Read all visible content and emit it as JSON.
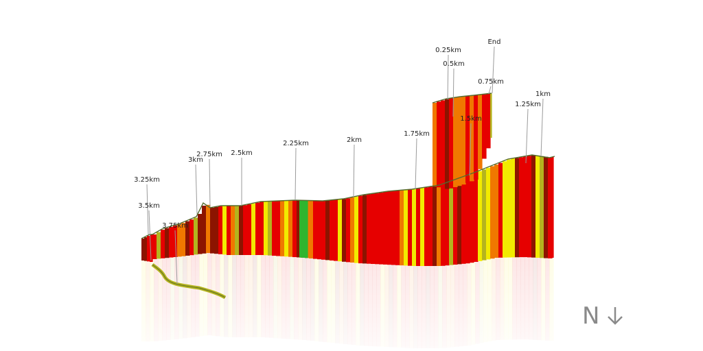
{
  "chart_data": {
    "type": "area",
    "labels": [
      "End",
      "0.25km",
      "0.5km",
      "0.75km",
      "1km",
      "1.25km",
      "1.5km",
      "1.75km",
      "2km",
      "2.25km",
      "2.5km",
      "2.75km",
      "3km",
      "3.25km",
      "3.5km",
      "3.75km"
    ],
    "compass": {
      "letter": "N",
      "arrow": "down"
    },
    "colors": {
      "green": "#2fb52f",
      "yellow": "#f2ea00",
      "olive": "#b4b41e",
      "orange": "#f07800",
      "red": "#e60000",
      "darkred": "#8c1400"
    }
  }
}
